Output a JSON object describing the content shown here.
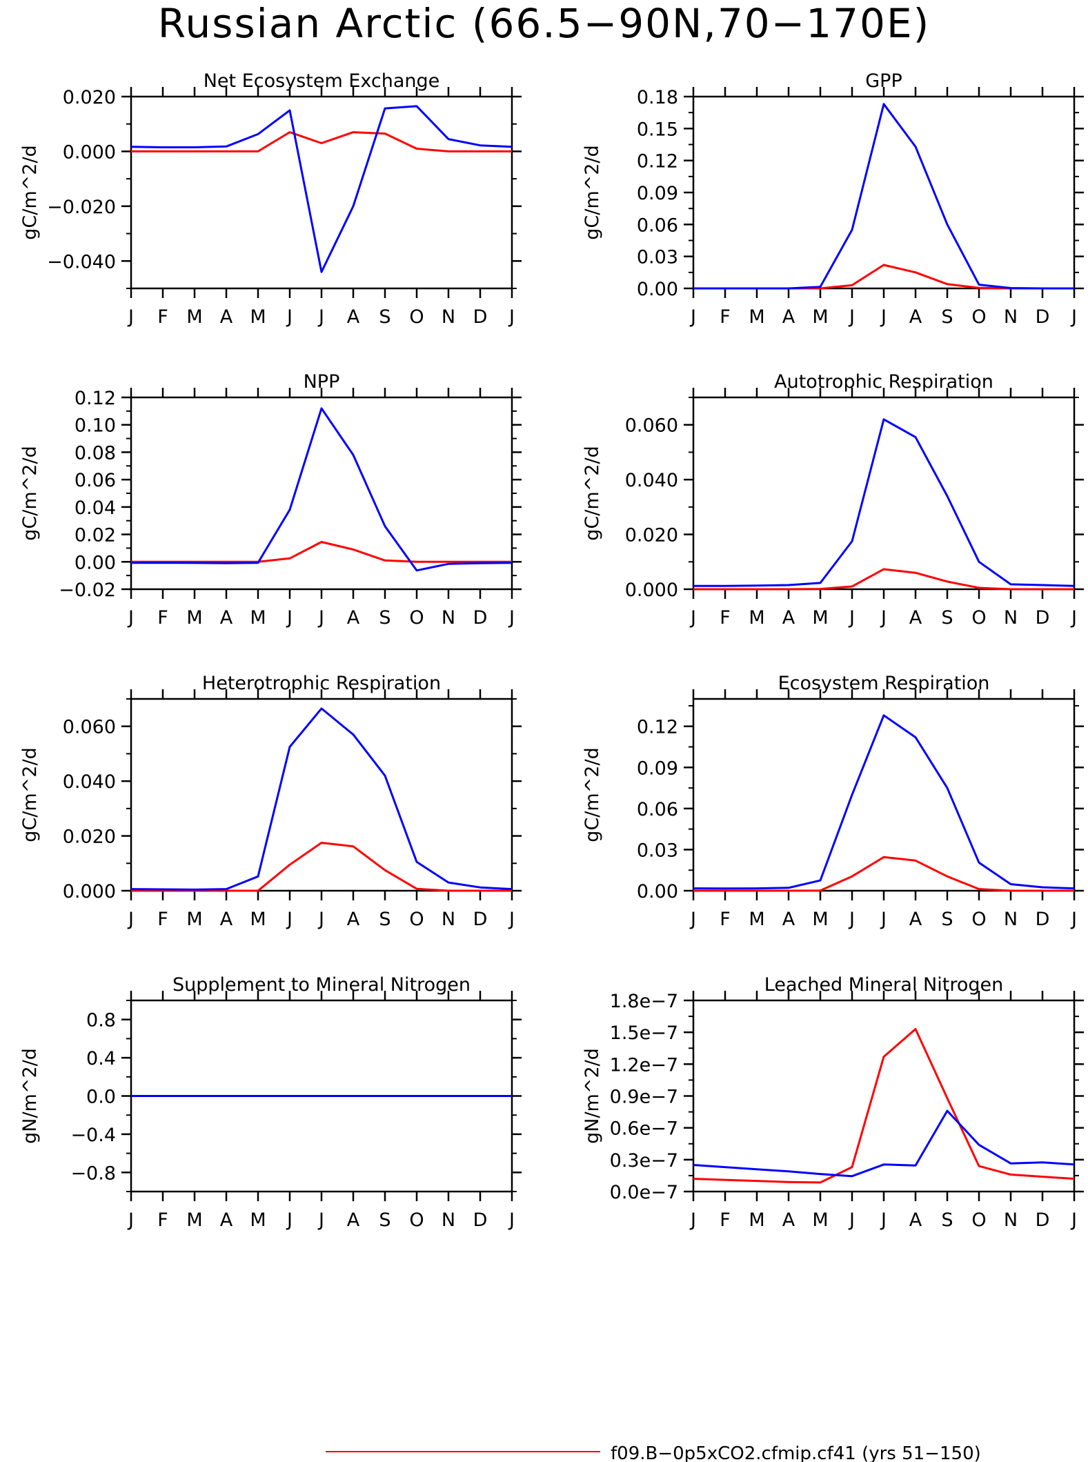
{
  "title": "Russian Arctic (66.5−90N,70−170E)",
  "colors": {
    "run1": "#ff0000",
    "run2": "#0000ff",
    "axis": "#000000"
  },
  "legend": [
    {
      "label": "f09.B−0p5xCO2.cfmip.cf41 (yrs 51−150)",
      "color": "#ff0000"
    }
  ],
  "months": [
    "J",
    "F",
    "M",
    "A",
    "M",
    "J",
    "J",
    "A",
    "S",
    "O",
    "N",
    "D",
    "J"
  ],
  "chart_data": [
    {
      "type": "line",
      "title": "Net Ecosystem Exchange",
      "ylabel": "gC/m^2/d",
      "ylim": [
        -0.05,
        0.02
      ],
      "yticks": [
        -0.04,
        -0.02,
        0.0,
        0.02
      ],
      "ytick_labels": [
        "−0.040",
        "−0.020",
        "0.000",
        "0.020"
      ],
      "series": [
        {
          "color": "#ff0000",
          "values": [
            0.0,
            0.0,
            0.0,
            0.0,
            0.0,
            0.007,
            0.003,
            0.007,
            0.0065,
            0.001,
            0.0,
            0.0,
            0.0
          ]
        },
        {
          "color": "#0000ff",
          "values": [
            0.0017,
            0.0015,
            0.0015,
            0.0018,
            0.0063,
            0.015,
            -0.044,
            -0.02,
            0.0157,
            0.0165,
            0.0045,
            0.0022,
            0.0017
          ]
        }
      ]
    },
    {
      "type": "line",
      "title": "GPP",
      "ylabel": "gC/m^2/d",
      "ylim": [
        0,
        0.18
      ],
      "yticks": [
        0,
        0.03,
        0.06,
        0.09,
        0.12,
        0.15,
        0.18
      ],
      "ytick_labels": [
        "0.00",
        "0.03",
        "0.06",
        "0.09",
        "0.12",
        "0.15",
        "0.18"
      ],
      "series": [
        {
          "color": "#ff0000",
          "values": [
            0,
            0,
            0,
            0,
            0,
            0.003,
            0.022,
            0.015,
            0.004,
            0.0005,
            0,
            0,
            0
          ]
        },
        {
          "color": "#0000ff",
          "values": [
            0,
            0,
            0,
            0,
            0.0015,
            0.055,
            0.173,
            0.133,
            0.06,
            0.0035,
            0.0003,
            0,
            0
          ]
        }
      ]
    },
    {
      "type": "line",
      "title": "NPP",
      "ylabel": "gC/m^2/d",
      "ylim": [
        -0.02,
        0.12
      ],
      "yticks": [
        -0.02,
        0.0,
        0.02,
        0.04,
        0.06,
        0.08,
        0.1,
        0.12
      ],
      "ytick_labels": [
        "−0.02",
        "0.00",
        "0.02",
        "0.04",
        "0.06",
        "0.08",
        "0.10",
        "0.12"
      ],
      "series": [
        {
          "color": "#ff0000",
          "values": [
            0,
            0,
            0,
            0,
            0,
            0.0025,
            0.0145,
            0.009,
            0.001,
            0,
            0,
            0,
            0
          ]
        },
        {
          "color": "#0000ff",
          "values": [
            -0.0007,
            -0.0007,
            -0.0008,
            -0.001,
            -0.0007,
            0.038,
            0.112,
            0.078,
            0.026,
            -0.0063,
            -0.0015,
            -0.001,
            -0.0007
          ]
        }
      ]
    },
    {
      "type": "line",
      "title": "Autotrophic Respiration",
      "ylabel": "gC/m^2/d",
      "ylim": [
        0,
        0.07
      ],
      "yticks": [
        0,
        0.02,
        0.04,
        0.06
      ],
      "ytick_labels": [
        "0.000",
        "0.020",
        "0.040",
        "0.060"
      ],
      "series": [
        {
          "color": "#ff0000",
          "values": [
            0,
            0,
            0,
            0,
            0.0001,
            0.001,
            0.0073,
            0.006,
            0.0028,
            0.0005,
            0,
            0,
            0
          ]
        },
        {
          "color": "#0000ff",
          "values": [
            0.0012,
            0.0012,
            0.0013,
            0.0015,
            0.0023,
            0.0175,
            0.062,
            0.0555,
            0.034,
            0.01,
            0.0018,
            0.0015,
            0.0012
          ]
        }
      ]
    },
    {
      "type": "line",
      "title": "Heterotrophic Respiration",
      "ylabel": "gC/m^2/d",
      "ylim": [
        0,
        0.07
      ],
      "yticks": [
        0,
        0.02,
        0.04,
        0.06
      ],
      "ytick_labels": [
        "0.000",
        "0.020",
        "0.040",
        "0.060"
      ],
      "series": [
        {
          "color": "#ff0000",
          "values": [
            0,
            0,
            0,
            0,
            0,
            0.0095,
            0.0175,
            0.0162,
            0.0075,
            0.0007,
            0,
            0,
            0
          ]
        },
        {
          "color": "#0000ff",
          "values": [
            0.0006,
            0.0005,
            0.0004,
            0.0006,
            0.0052,
            0.0525,
            0.0665,
            0.057,
            0.042,
            0.0105,
            0.003,
            0.0012,
            0.0006
          ]
        }
      ]
    },
    {
      "type": "line",
      "title": "Ecosystem Respiration",
      "ylabel": "gC/m^2/d",
      "ylim": [
        0,
        0.14
      ],
      "yticks": [
        0,
        0.03,
        0.06,
        0.09,
        0.12
      ],
      "ytick_labels": [
        "0.00",
        "0.03",
        "0.06",
        "0.09",
        "0.12"
      ],
      "series": [
        {
          "color": "#ff0000",
          "values": [
            0,
            0,
            0,
            0,
            0.0001,
            0.0105,
            0.0245,
            0.022,
            0.0105,
            0.0012,
            0,
            0,
            0
          ]
        },
        {
          "color": "#0000ff",
          "values": [
            0.0017,
            0.0016,
            0.0017,
            0.0021,
            0.0075,
            0.07,
            0.128,
            0.112,
            0.075,
            0.0205,
            0.0048,
            0.0025,
            0.0017
          ]
        }
      ]
    },
    {
      "type": "line",
      "title": "Supplement to Mineral Nitrogen",
      "ylabel": "gN/m^2/d",
      "ylim": [
        -1.0,
        1.0
      ],
      "yticks": [
        -0.8,
        -0.4,
        0.0,
        0.4,
        0.8
      ],
      "ytick_labels": [
        "−0.8",
        "−0.4",
        "0.0",
        "0.4",
        "0.8"
      ],
      "series": [
        {
          "color": "#ff0000",
          "values": [
            0,
            0,
            0,
            0,
            0,
            0,
            0,
            0,
            0,
            0,
            0,
            0,
            0
          ]
        },
        {
          "color": "#0000ff",
          "values": [
            0,
            0,
            0,
            0,
            0,
            0,
            0,
            0,
            0,
            0,
            0,
            0,
            0
          ]
        }
      ]
    },
    {
      "type": "line",
      "title": "Leached Mineral Nitrogen",
      "ylabel": "gN/m^2/d",
      "ylim": [
        0,
        1.8e-07
      ],
      "yticks": [
        0,
        3e-08,
        6e-08,
        9e-08,
        1.2e-07,
        1.5e-07,
        1.8e-07
      ],
      "ytick_labels": [
        "0.0e−7",
        "0.3e−7",
        "0.6e−7",
        "0.9e−7",
        "1.2e−7",
        "1.5e−7",
        "1.8e−7"
      ],
      "series": [
        {
          "color": "#ff0000",
          "values": [
            1.2e-08,
            1.1e-08,
            1e-08,
            9e-09,
            8.5e-09,
            2.3e-08,
            1.27e-07,
            1.53e-07,
            8.8e-08,
            2.4e-08,
            1.6e-08,
            1.4e-08,
            1.2e-08
          ]
        },
        {
          "color": "#0000ff",
          "values": [
            2.5e-08,
            2.3e-08,
            2.1e-08,
            1.9e-08,
            1.65e-08,
            1.45e-08,
            2.55e-08,
            2.45e-08,
            7.6e-08,
            4.4e-08,
            2.65e-08,
            2.75e-08,
            2.55e-08
          ]
        }
      ]
    }
  ]
}
